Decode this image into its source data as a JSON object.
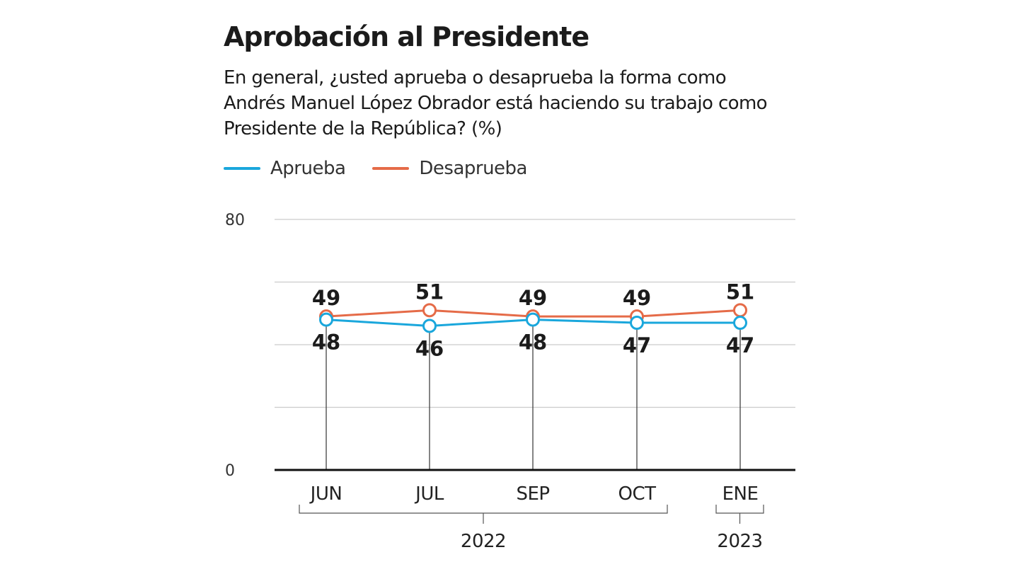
{
  "title": "Aprobación al Presidente",
  "subtitle": "En general, ¿usted aprueba o desaprueba la forma como Andrés Manuel López Obrador está haciendo su trabajo como Presidente de la República? (%)",
  "legend": [
    {
      "label": "Aprueba",
      "color": "#1aa7dc"
    },
    {
      "label": "Desaprueba",
      "color": "#e56b48"
    }
  ],
  "chart_data": {
    "type": "line",
    "categories": [
      "JUN",
      "JUL",
      "SEP",
      "OCT",
      "ENE"
    ],
    "year_groups": [
      {
        "label": "2022",
        "categories": [
          "JUN",
          "JUL",
          "SEP",
          "OCT"
        ]
      },
      {
        "label": "2023",
        "categories": [
          "ENE"
        ]
      }
    ],
    "series": [
      {
        "name": "Aprueba",
        "color": "#1aa7dc",
        "values": [
          48,
          46,
          48,
          47,
          47
        ]
      },
      {
        "name": "Desaprueba",
        "color": "#e56b48",
        "values": [
          49,
          51,
          49,
          49,
          51
        ]
      }
    ],
    "ylim": [
      0,
      80
    ],
    "yticks": [
      0,
      80
    ],
    "ygrid": [
      20,
      40,
      60,
      80
    ],
    "grid": true,
    "legend_position": "top-left",
    "xlabel": "",
    "ylabel": ""
  }
}
